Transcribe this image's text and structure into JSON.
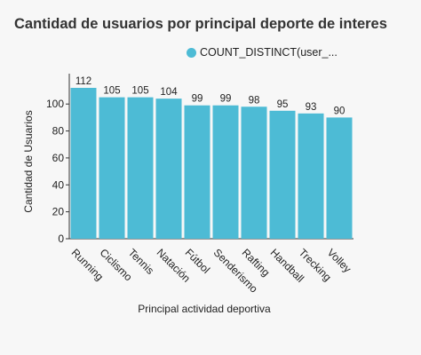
{
  "chart_data": {
    "type": "bar",
    "title": "Cantidad de usuarios por principal deporte de interes",
    "xlabel": "Principal actividad deportiva",
    "ylabel": "Cantidad de Usuarios",
    "categories": [
      "Running",
      "Ciclismo",
      "Tennis",
      "Natación",
      "Fútbol",
      "Senderismo",
      "Rafting",
      "Handball",
      "Trecking",
      "Volley"
    ],
    "series": [
      {
        "name": "COUNT_DISTINCT(user_...",
        "values": [
          112,
          105,
          105,
          104,
          99,
          99,
          98,
          95,
          93,
          90
        ],
        "color": "#4dbbd5"
      }
    ],
    "ylim": [
      0,
      112
    ],
    "yticks": [
      0,
      20,
      40,
      60,
      80,
      100
    ],
    "grid": false,
    "data_labels": true,
    "legend_position": "top"
  }
}
